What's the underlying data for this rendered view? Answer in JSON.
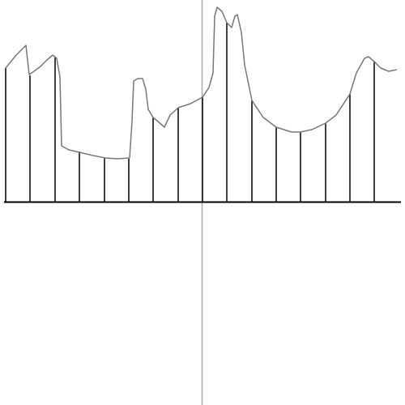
{
  "chart_data": {
    "type": "stem",
    "xlim": [
      -250,
      250
    ],
    "ylim": [
      -250,
      250
    ],
    "series": [
      {
        "color": "#000000",
        "x": [
          -243,
          -213,
          -182,
          -152,
          -121,
          -91,
          -61,
          -30,
          0,
          30,
          61,
          91,
          121,
          152,
          182,
          212
        ],
        "values": [
          166,
          157,
          180,
          63,
          55,
          54,
          105,
          117,
          130,
          222,
          126,
          93,
          87,
          98,
          134,
          174
        ]
      },
      {
        "color": "#777777",
        "x": [
          -243,
          -230,
          -218,
          -214,
          -208,
          -200,
          -192,
          -185,
          -180,
          -176,
          -174,
          -165,
          -152,
          -135,
          -120,
          -105,
          -90,
          -87,
          -85,
          -80,
          -74,
          -70,
          -67,
          -61,
          -55,
          -47,
          -40,
          -30,
          -15,
          0,
          8,
          13,
          15,
          18,
          24,
          30,
          36,
          40,
          43,
          48,
          52,
          61,
          75,
          91,
          110,
          121,
          135,
          152,
          165,
          182,
          190,
          200,
          205,
          212,
          220,
          230,
          240
        ],
        "values": [
          166,
          182,
          194,
          158,
          162,
          168,
          176,
          182,
          178,
          155,
          70,
          65,
          62,
          58,
          55,
          54,
          55,
          100,
          150,
          153,
          153,
          140,
          115,
          105,
          100,
          93,
          108,
          117,
          122,
          130,
          142,
          160,
          230,
          241,
          236,
          222,
          216,
          230,
          232,
          210,
          170,
          126,
          105,
          93,
          87,
          87,
          90,
          98,
          108,
          134,
          160,
          178,
          180,
          174,
          166,
          162,
          164
        ]
      }
    ]
  }
}
